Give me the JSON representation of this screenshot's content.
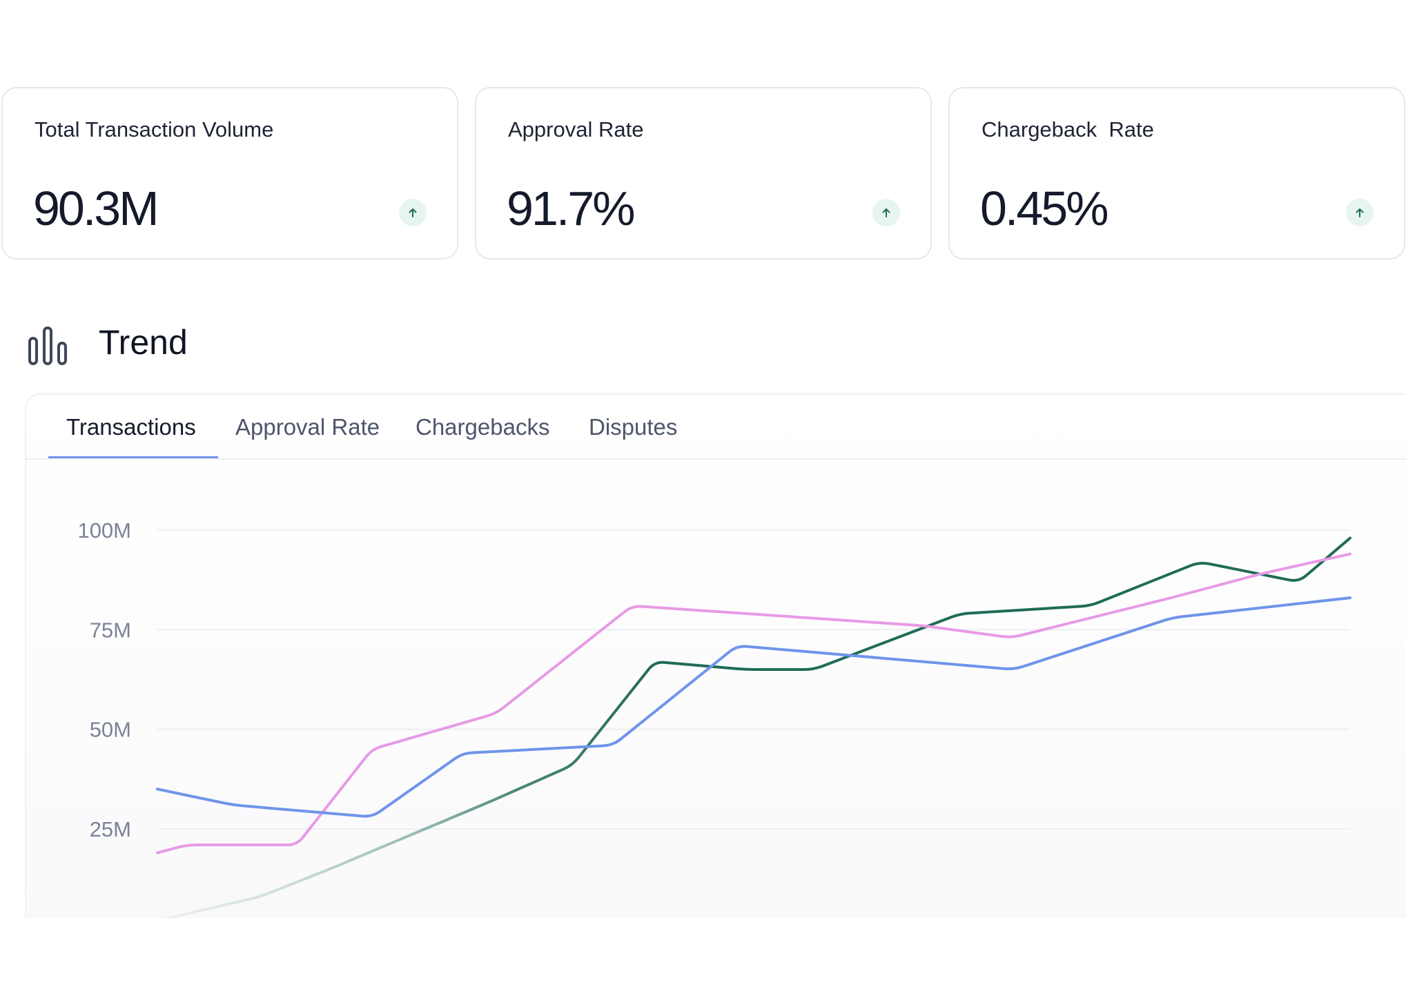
{
  "cards": [
    {
      "label": "Total Transaction Volume",
      "value": "90.3M",
      "trend_icon": "arrow-up-icon"
    },
    {
      "label": "Approval Rate",
      "value": "91.7%",
      "trend_icon": "arrow-up-icon"
    },
    {
      "label": "Chargeback  Rate",
      "value": "0.45%",
      "trend_icon": "arrow-up-icon"
    }
  ],
  "section": {
    "title": "Trend",
    "icon": "bar-chart-icon"
  },
  "tabs": [
    {
      "label": "Transactions",
      "active": true
    },
    {
      "label": "Approval Rate",
      "active": false
    },
    {
      "label": "Chargebacks",
      "active": false
    },
    {
      "label": "Disputes",
      "active": false
    }
  ],
  "colors": {
    "accent": "#6f94ea",
    "green_line": "#1f6b57",
    "pink_line": "#e79ae6",
    "blue_line": "#6f94ea",
    "trend_bg": "#e6f6ef",
    "trend_icon": "#1f6b57"
  },
  "chart_data": {
    "type": "line",
    "title": "",
    "xlabel": "",
    "ylabel": "",
    "ylim": [
      0,
      108
    ],
    "xlim": [
      0,
      1
    ],
    "grid": true,
    "ytick_labels": [
      "25M",
      "50M",
      "75M",
      "100M"
    ],
    "yticks": [
      25,
      50,
      75,
      100
    ],
    "series": [
      {
        "color": "#1f6b57",
        "x": [
          0.0,
          0.086,
          0.145,
          0.28,
          0.348,
          0.417,
          0.493,
          0.55,
          0.673,
          0.782,
          0.874,
          0.957,
          1.0
        ],
        "y": [
          2,
          8,
          15,
          32,
          41,
          67,
          65,
          65,
          79,
          81,
          92,
          87,
          98
        ]
      },
      {
        "color": "#e79ae6",
        "x": [
          0.0,
          0.025,
          0.117,
          0.18,
          0.284,
          0.398,
          0.642,
          0.716,
          0.85,
          0.925,
          1.0
        ],
        "y": [
          19,
          21,
          21,
          45,
          54,
          81,
          76,
          73,
          83,
          89,
          94
        ]
      },
      {
        "color": "#6f94ea",
        "x": [
          0.0,
          0.064,
          0.18,
          0.256,
          0.382,
          0.486,
          0.718,
          0.851,
          1.0
        ],
        "y": [
          35,
          31,
          28,
          44,
          46,
          71,
          65,
          78,
          83
        ]
      }
    ]
  }
}
